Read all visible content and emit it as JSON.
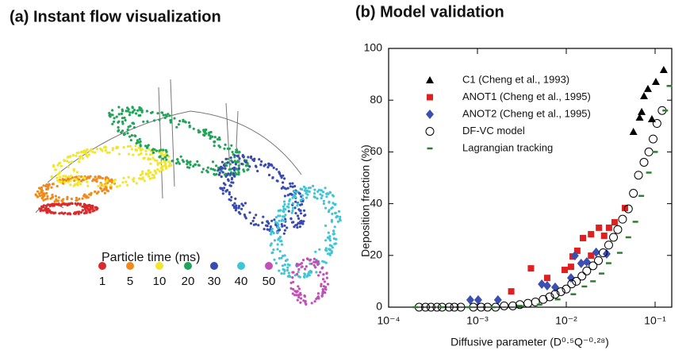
{
  "flow_panel": {
    "title": "(a) Instant flow visualization",
    "legend_title": "Particle time (ms)",
    "legend": [
      {
        "label": "1",
        "color": "#d92b2b"
      },
      {
        "label": "5",
        "color": "#f08a1c"
      },
      {
        "label": "10",
        "color": "#f2e52e"
      },
      {
        "label": "20",
        "color": "#22a35a"
      },
      {
        "label": "30",
        "color": "#3a4bb0"
      },
      {
        "label": "40",
        "color": "#3fc5d6"
      },
      {
        "label": "50",
        "color": "#c24fb5"
      }
    ]
  },
  "chart_data": {
    "type": "scatter",
    "title": "(b) Model validation",
    "xlabel": "Diffusive parameter (D⁰·⁵Q⁻⁰·²⁸)",
    "ylabel": "Deposition fraction (%)",
    "xscale": "log",
    "xlim": [
      0.0001,
      0.154
    ],
    "ylim": [
      0,
      100
    ],
    "xticks": [
      {
        "value": 0.0001,
        "label": "10⁻⁴"
      },
      {
        "value": 0.001,
        "label": "10⁻³"
      },
      {
        "value": 0.01,
        "label": "10⁻²"
      },
      {
        "value": 0.1,
        "label": "10⁻¹"
      }
    ],
    "yticks": [
      0,
      20,
      40,
      60,
      80,
      100
    ],
    "legend": "upper left",
    "series": [
      {
        "name": "C1 (Cheng et al., 1993)",
        "color": "#000000",
        "marker": "triangle",
        "x": [
          0.057,
          0.0706,
          0.075,
          0.083,
          0.092,
          0.102,
          0.125,
          0.067
        ],
        "values": [
          67.8,
          75.5,
          81.6,
          84.4,
          72.7,
          87.1,
          91.7,
          73.3
        ]
      },
      {
        "name": "ANOT1 (Cheng et al., 1995)",
        "color": "#e02020",
        "marker": "square",
        "x": [
          0.0024,
          0.004,
          0.0061,
          0.0096,
          0.0113,
          0.0118,
          0.0133,
          0.0154,
          0.019,
          0.019,
          0.0233,
          0.0267,
          0.0303,
          0.035,
          0.0458
        ],
        "values": [
          6.1,
          15,
          11.3,
          14.4,
          15.6,
          19.6,
          21.8,
          26.7,
          28.2,
          19.9,
          30.7,
          27.6,
          30.7,
          32.8,
          38.3
        ]
      },
      {
        "name": "ANOT2 (Cheng et al., 1995)",
        "color": "#3b4fb0",
        "marker": "diamond",
        "x": [
          0.00083,
          0.00102,
          0.0017,
          0.0053,
          0.0061,
          0.0075,
          0.0113,
          0.0125,
          0.0147,
          0.017,
          0.0217,
          0.0285
        ],
        "values": [
          2.8,
          2.8,
          2.8,
          8.9,
          8.3,
          7.7,
          11.3,
          19.9,
          16.9,
          17.5,
          21.2,
          20.6
        ]
      },
      {
        "name": "DF-VC model",
        "color": "#000000",
        "marker": "open-circle",
        "x": [
          0.00022,
          0.00026,
          0.0003,
          0.00035,
          0.0004,
          0.00048,
          0.00055,
          0.00065,
          0.0009,
          0.0011,
          0.0013,
          0.0016,
          0.002,
          0.0025,
          0.003,
          0.0037,
          0.0045,
          0.0055,
          0.0065,
          0.0075,
          0.0087,
          0.01,
          0.0115,
          0.013,
          0.015,
          0.017,
          0.02,
          0.023,
          0.026,
          0.03,
          0.034,
          0.038,
          0.043,
          0.05,
          0.057,
          0.065,
          0.075,
          0.085,
          0.095,
          0.105,
          0.12
        ],
        "values": [
          0,
          0,
          0,
          0,
          0,
          0,
          0,
          0,
          0,
          0,
          0,
          0,
          0.5,
          0.5,
          1,
          1.5,
          2,
          3,
          4,
          5,
          6,
          7,
          9,
          10,
          12,
          14,
          16,
          18,
          21,
          24,
          27,
          30,
          34,
          38,
          44,
          51,
          56,
          60,
          65,
          71,
          76
        ]
      },
      {
        "name": "Lagrangian tracking",
        "color": "#2e7d32",
        "marker": "dash",
        "x": [
          0.0002,
          0.0004,
          0.0008,
          0.0015,
          0.003,
          0.005,
          0.008,
          0.012,
          0.016,
          0.02,
          0.025,
          0.03,
          0.04,
          0.05,
          0.06,
          0.07,
          0.085,
          0.1,
          0.13,
          0.145
        ],
        "values": [
          0,
          0,
          0,
          0,
          0.5,
          1,
          3,
          5,
          8,
          10,
          13,
          17,
          21,
          27,
          33,
          43,
          52,
          60,
          76,
          85.5
        ]
      }
    ]
  }
}
